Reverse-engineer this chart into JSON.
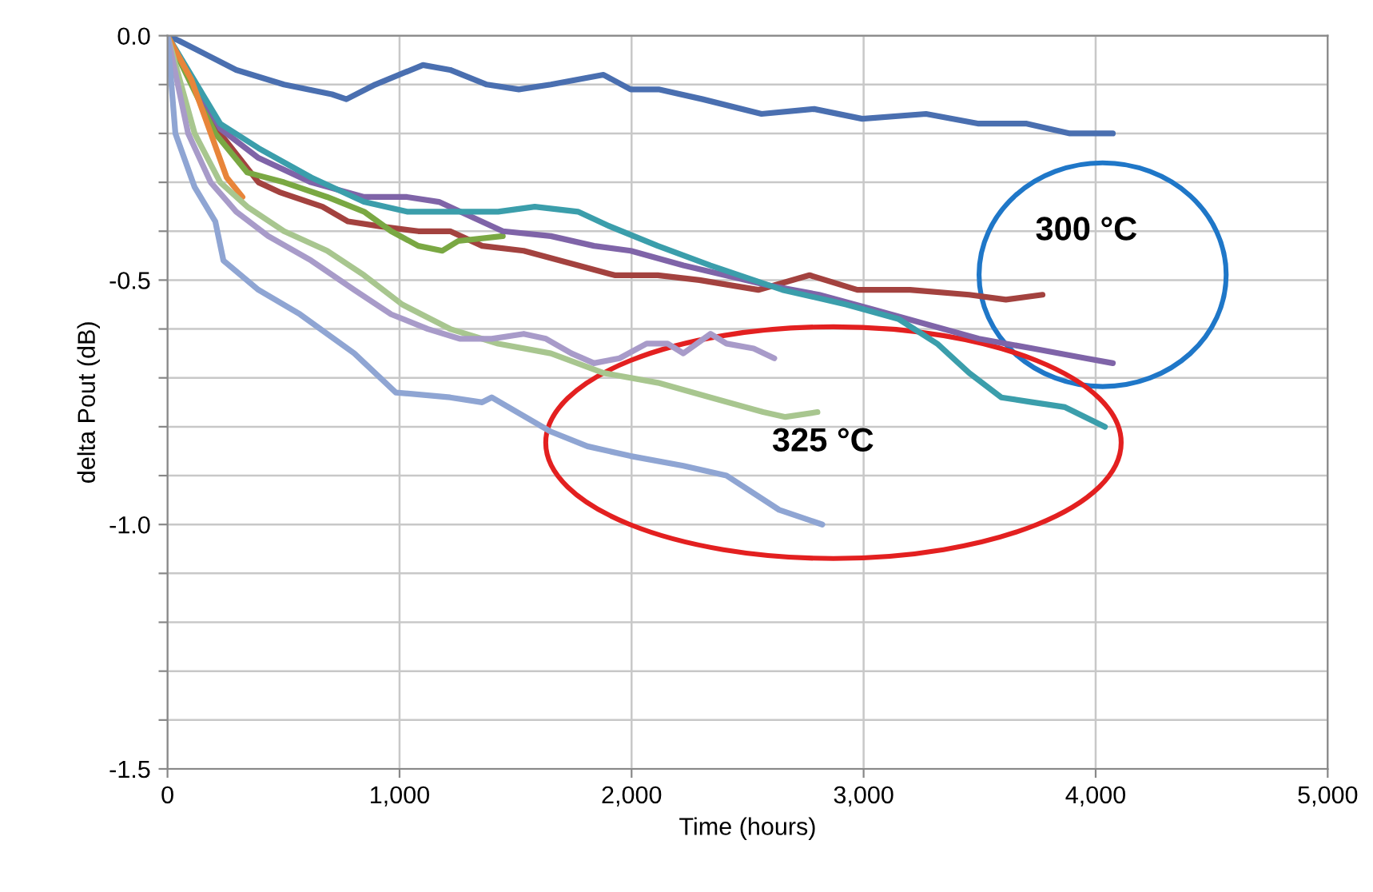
{
  "chart_data": {
    "type": "line",
    "xlabel": "Time (hours)",
    "ylabel": "delta Pout (dB)",
    "xlim": [
      0,
      5000
    ],
    "ylim": [
      -1.5,
      0
    ],
    "xticks": [
      0,
      {
        "value": 1000,
        "label": "1,000"
      },
      {
        "value": 2000,
        "label": "2,000"
      },
      {
        "value": 3000,
        "label": "3,000"
      },
      {
        "value": 4000,
        "label": "4,000"
      },
      {
        "value": 5000,
        "label": "5,000"
      }
    ],
    "yticks": [
      {
        "value": 0,
        "label": "0.0"
      },
      {
        "value": -0.1,
        "label": null
      },
      {
        "value": -0.2,
        "label": null
      },
      {
        "value": -0.3,
        "label": null
      },
      {
        "value": -0.4,
        "label": null
      },
      {
        "value": -0.5,
        "label": "-0.5"
      },
      {
        "value": -0.6,
        "label": null
      },
      {
        "value": -0.7,
        "label": null
      },
      {
        "value": -0.8,
        "label": null
      },
      {
        "value": -0.9,
        "label": null
      },
      {
        "value": -1.0,
        "label": "-1.0"
      },
      {
        "value": -1.1,
        "label": null
      },
      {
        "value": -1.2,
        "label": null
      },
      {
        "value": -1.3,
        "label": null
      },
      {
        "value": -1.4,
        "label": null
      },
      {
        "value": -1.5,
        "label": "-1.5"
      }
    ],
    "grid": true,
    "marker": "none",
    "line_style": "solid",
    "series": [
      {
        "color": "#4a6fb0",
        "x": [
          0,
          48,
          296,
          502,
          709,
          771,
          895,
          1101,
          1218,
          1376,
          1514,
          1652,
          1879,
          1996,
          2120,
          2306,
          2560,
          2787,
          2994,
          3269,
          3496,
          3703,
          3889,
          4074
        ],
        "values": [
          0,
          -0.01,
          -0.07,
          -0.1,
          -0.12,
          -0.13,
          -0.1,
          -0.06,
          -0.07,
          -0.1,
          -0.11,
          -0.1,
          -0.08,
          -0.11,
          -0.11,
          -0.13,
          -0.16,
          -0.15,
          -0.17,
          -0.16,
          -0.18,
          -0.18,
          -0.2,
          -0.2
        ]
      },
      {
        "color": "#a3423f",
        "x": [
          0,
          227,
          392,
          482,
          668,
          778,
          915,
          1081,
          1218,
          1356,
          1535,
          1769,
          1927,
          2113,
          2292,
          2546,
          2767,
          2973,
          3200,
          3455,
          3613,
          3771
        ],
        "values": [
          0,
          -0.2,
          -0.3,
          -0.32,
          -0.35,
          -0.38,
          -0.39,
          -0.4,
          -0.4,
          -0.43,
          -0.44,
          -0.47,
          -0.49,
          -0.49,
          -0.5,
          -0.52,
          -0.49,
          -0.52,
          -0.52,
          -0.53,
          -0.54,
          -0.53
        ]
      },
      {
        "color": "#7aa843",
        "x": [
          0,
          206,
          344,
          502,
          688,
          847,
          964,
          1081,
          1184,
          1253,
          1445
        ],
        "values": [
          0,
          -0.2,
          -0.28,
          -0.3,
          -0.33,
          -0.36,
          -0.4,
          -0.43,
          -0.44,
          -0.42,
          -0.41
        ]
      },
      {
        "color": "#7f64a8",
        "x": [
          0,
          227,
          392,
          619,
          847,
          1032,
          1170,
          1308,
          1445,
          1652,
          1838,
          1996,
          2223,
          2581,
          2808,
          3042,
          3269,
          3496,
          3730,
          3957,
          4074
        ],
        "values": [
          0,
          -0.19,
          -0.25,
          -0.3,
          -0.33,
          -0.33,
          -0.34,
          -0.37,
          -0.4,
          -0.41,
          -0.43,
          -0.44,
          -0.47,
          -0.51,
          -0.53,
          -0.56,
          -0.59,
          -0.62,
          -0.64,
          -0.66,
          -0.67
        ]
      },
      {
        "color": "#3b9eab",
        "x": [
          0,
          227,
          392,
          619,
          847,
          1032,
          1218,
          1425,
          1583,
          1769,
          1906,
          2113,
          2340,
          2650,
          2925,
          3152,
          3317,
          3455,
          3593,
          3730,
          3868,
          4040
        ],
        "values": [
          0,
          -0.18,
          -0.23,
          -0.29,
          -0.34,
          -0.36,
          -0.36,
          -0.36,
          -0.35,
          -0.36,
          -0.39,
          -0.43,
          -0.47,
          -0.52,
          -0.55,
          -0.58,
          -0.63,
          -0.69,
          -0.74,
          -0.75,
          -0.76,
          -0.8
        ]
      },
      {
        "color": "#e8853a",
        "x": [
          0,
          103,
          255,
          323
        ],
        "values": [
          0,
          -0.09,
          -0.29,
          -0.33
        ]
      },
      {
        "color": "#a8c68f",
        "x": [
          0,
          117,
          227,
          344,
          502,
          688,
          847,
          1012,
          1218,
          1425,
          1652,
          1879,
          2113,
          2340,
          2567,
          2663,
          2801
        ],
        "values": [
          0,
          -0.2,
          -0.3,
          -0.35,
          -0.4,
          -0.44,
          -0.49,
          -0.55,
          -0.6,
          -0.63,
          -0.65,
          -0.69,
          -0.71,
          -0.74,
          -0.77,
          -0.78,
          -0.77
        ]
      },
      {
        "color": "#a89bc9",
        "x": [
          0,
          89,
          186,
          296,
          434,
          619,
          805,
          964,
          1122,
          1259,
          1397,
          1535,
          1631,
          1741,
          1838,
          1948,
          2065,
          2155,
          2223,
          2340,
          2409,
          2526,
          2615
        ],
        "values": [
          0,
          -0.2,
          -0.3,
          -0.36,
          -0.41,
          -0.46,
          -0.52,
          -0.57,
          -0.6,
          -0.62,
          -0.62,
          -0.61,
          -0.62,
          -0.65,
          -0.67,
          -0.66,
          -0.63,
          -0.63,
          -0.65,
          -0.61,
          -0.63,
          -0.64,
          -0.66
        ]
      },
      {
        "color": "#8fa5d3",
        "x": [
          0,
          34,
          117,
          206,
          241,
          392,
          571,
          805,
          984,
          1218,
          1356,
          1397,
          1652,
          1810,
          1996,
          2223,
          2409,
          2636,
          2822
        ],
        "values": [
          0,
          -0.2,
          -0.31,
          -0.38,
          -0.46,
          -0.52,
          -0.57,
          -0.65,
          -0.73,
          -0.74,
          -0.75,
          -0.74,
          -0.81,
          -0.84,
          -0.86,
          -0.88,
          -0.9,
          -0.97,
          -1.0
        ]
      }
    ],
    "annotations": [
      "300 °C",
      "325 °C"
    ]
  }
}
